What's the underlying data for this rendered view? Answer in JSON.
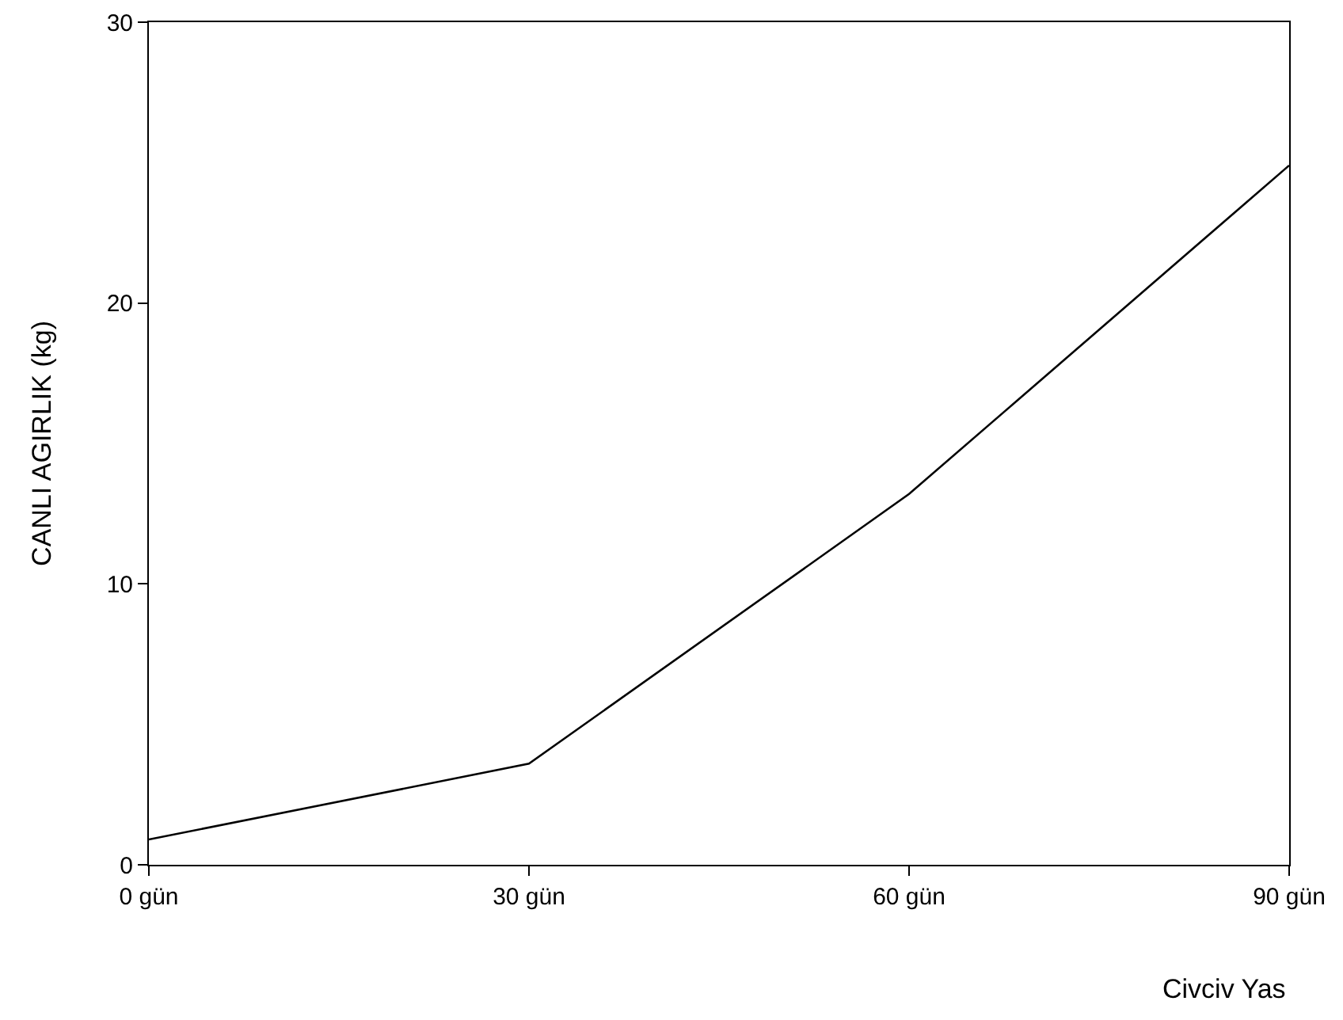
{
  "chart_data": {
    "type": "line",
    "xlabel": "Civciv Yas",
    "ylabel": "CANLI AGIRLIK (kg)",
    "categories": [
      "0 gün",
      "30 gün",
      "60 gün",
      "90 gün"
    ],
    "series": [
      {
        "color": "#000000",
        "values": [
          0.9,
          3.6,
          13.2,
          24.9
        ]
      }
    ],
    "ylim": [
      0,
      30
    ],
    "yticks": [
      0,
      10,
      20,
      30
    ],
    "grid": false,
    "marker": "none",
    "line_style": "solid"
  }
}
